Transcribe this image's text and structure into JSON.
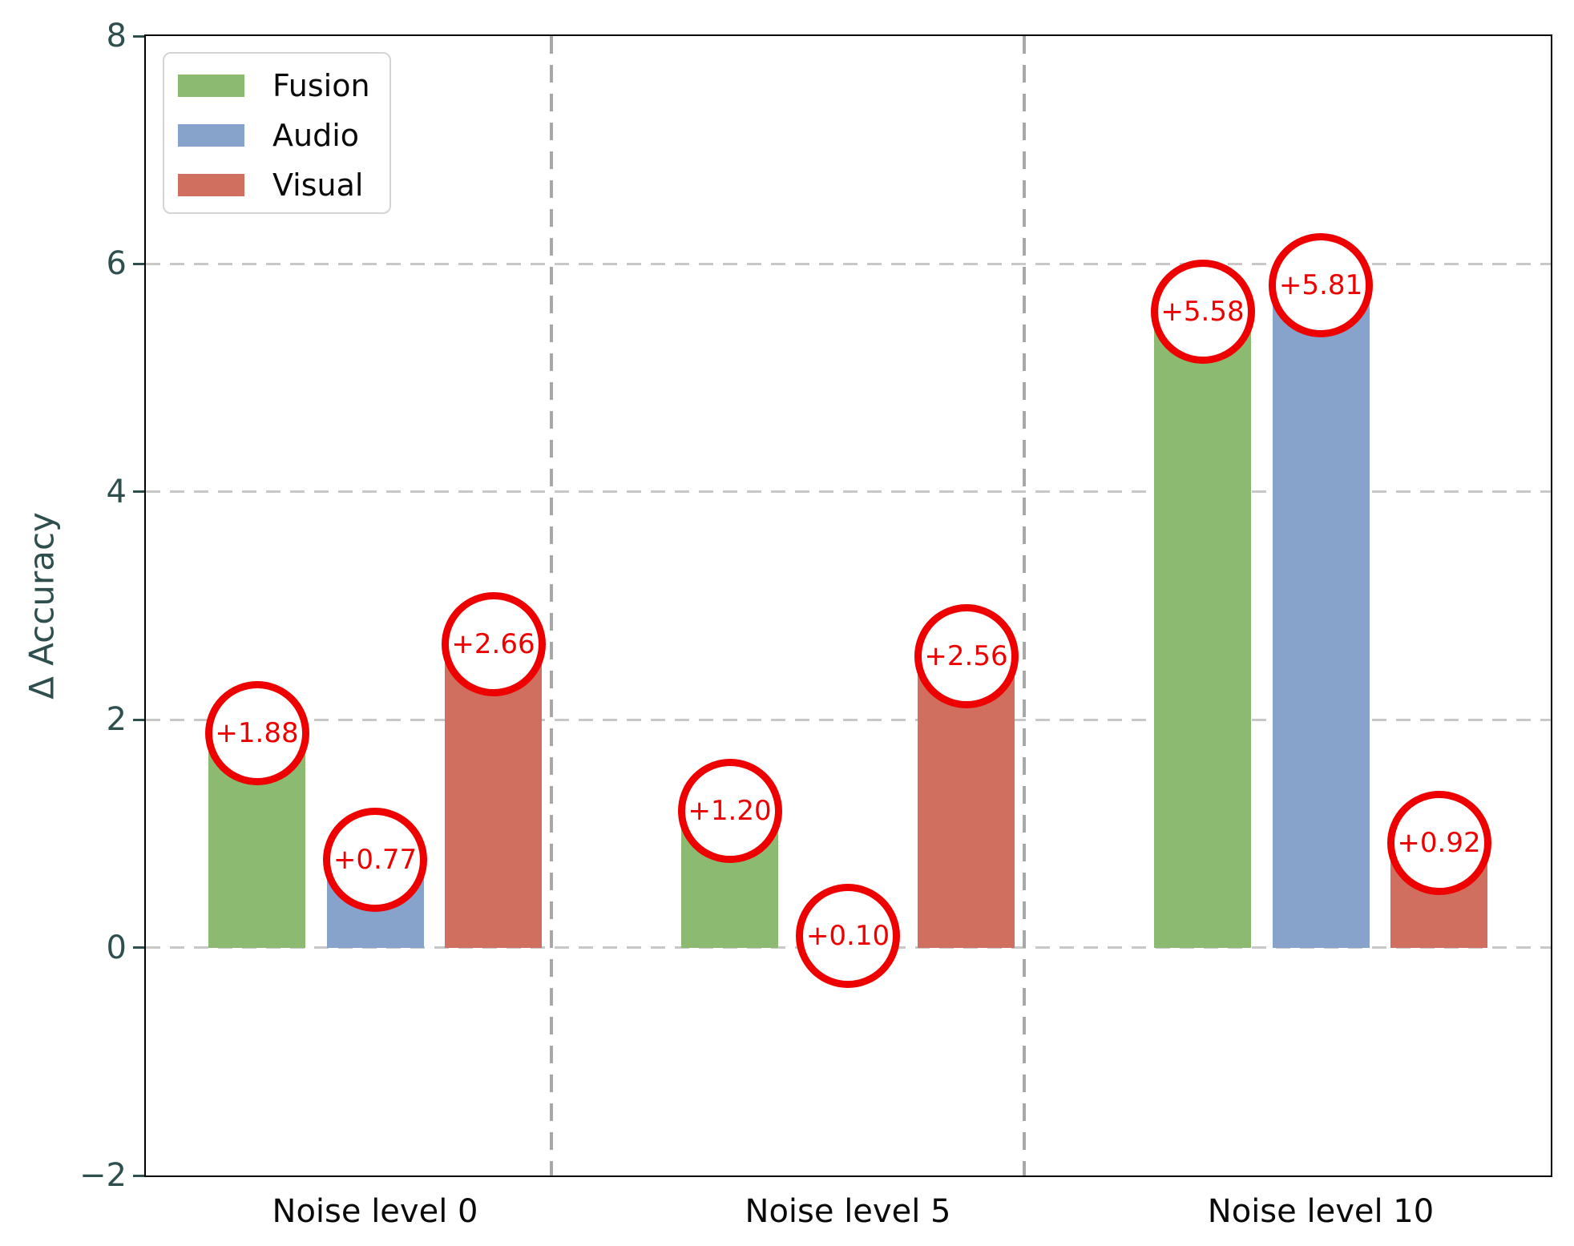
{
  "chart_data": {
    "type": "bar",
    "title": "",
    "xlabel": "",
    "ylabel": "Δ Accuracy",
    "ylim": [
      -2,
      8
    ],
    "yticks": [
      8,
      6,
      4,
      2,
      0,
      -2
    ],
    "yticklabels": [
      "8",
      "6",
      "4",
      "2",
      "0",
      "−2"
    ],
    "gridline_yvalues": [
      0,
      2,
      4,
      6
    ],
    "categories": [
      "Noise level 0",
      "Noise level 5",
      "Noise level 10"
    ],
    "series": [
      {
        "name": "Fusion",
        "color": "#8dba71",
        "values": [
          1.88,
          1.2,
          5.58
        ],
        "labels": [
          "+1.88",
          "+1.20",
          "+5.58"
        ]
      },
      {
        "name": "Audio",
        "color": "#87a3cb",
        "values": [
          0.77,
          0.1,
          5.81
        ],
        "labels": [
          "+0.77",
          "+0.10",
          "+5.81"
        ]
      },
      {
        "name": "Visual",
        "color": "#d06e5f",
        "values": [
          2.66,
          2.56,
          0.92
        ],
        "labels": [
          "+2.66",
          "+2.56",
          "+0.92"
        ]
      }
    ],
    "legend_position": "upper left",
    "grid": "on",
    "annotation_style": {
      "shape": "circle",
      "outline_color": "#ee0000",
      "text_color": "#ee0000",
      "fill": "#ffffff"
    },
    "axis_label_color": "#2f4f4f",
    "ytick_color": "#2f4f4f",
    "xtick_color": "#0a0a0a"
  }
}
